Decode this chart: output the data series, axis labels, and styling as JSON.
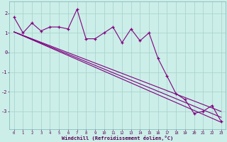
{
  "title": "",
  "xlabel": "Windchill (Refroidissement éolien,°C)",
  "bg_color": "#cceee8",
  "grid_color": "#aad4ce",
  "line_color": "#800080",
  "x_ticks": [
    0,
    1,
    2,
    3,
    4,
    5,
    6,
    7,
    8,
    9,
    10,
    11,
    12,
    13,
    14,
    15,
    16,
    17,
    18,
    19,
    20,
    21,
    22,
    23
  ],
  "y_ticks": [
    -3,
    -2,
    -1,
    0,
    1,
    2
  ],
  "ylim": [
    -3.9,
    2.6
  ],
  "xlim": [
    -0.5,
    23.5
  ],
  "main_line_x": [
    0,
    1,
    2,
    3,
    4,
    5,
    6,
    7,
    8,
    9,
    10,
    11,
    12,
    13,
    14,
    15,
    16,
    17,
    18,
    19,
    20,
    21,
    22,
    23
  ],
  "main_line_y": [
    1.8,
    1.0,
    1.5,
    1.1,
    1.3,
    1.3,
    1.2,
    2.2,
    0.7,
    0.7,
    1.0,
    1.3,
    0.5,
    1.2,
    0.6,
    1.0,
    -0.3,
    -1.2,
    -2.1,
    -2.4,
    -3.1,
    -3.0,
    -2.7,
    -3.5
  ],
  "trend1_x": [
    0,
    23
  ],
  "trend1_y": [
    1.05,
    -3.0
  ],
  "trend2_x": [
    0,
    23
  ],
  "trend2_y": [
    1.05,
    -3.3
  ],
  "trend3_x": [
    0,
    23
  ],
  "trend3_y": [
    1.05,
    -3.55
  ]
}
